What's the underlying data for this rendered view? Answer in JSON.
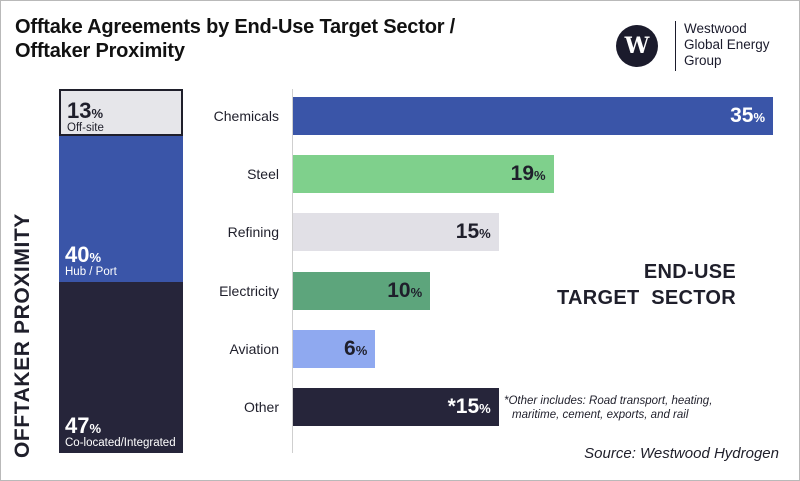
{
  "title": {
    "line1": "Offtake Agreements by End-Use Target Sector /",
    "line2": "Offtaker Proximity"
  },
  "logo": {
    "mark": "W",
    "name_line1": "Westwood",
    "name_line2": "Global Energy",
    "name_line3": "Group"
  },
  "colors": {
    "chemicals": "#3a55a8",
    "steel": "#7fd08c",
    "refining": "#e1e0e6",
    "electricity": "#5da57c",
    "aviation": "#8fa9f0",
    "other": "#26253a",
    "offsite": "#e6e6ea",
    "hub_port": "#3a55a8",
    "colocated": "#26253a"
  },
  "chart_data": [
    {
      "type": "bar",
      "orientation": "horizontal",
      "title": "END-USE TARGET SECTOR",
      "title_line1": "END-USE",
      "title_line2": "TARGET  SECTOR",
      "unit": "%",
      "categories": [
        "Chemicals",
        "Steel",
        "Refining",
        "Electricity",
        "Aviation",
        "Other"
      ],
      "values": [
        35,
        19,
        15,
        10,
        6,
        15
      ],
      "value_labels": [
        "35",
        "19",
        "15",
        "10",
        "6",
        "*15"
      ],
      "xlim": [
        0,
        35
      ]
    },
    {
      "type": "bar",
      "orientation": "stacked-vertical",
      "title": "OFFTAKER PROXIMITY",
      "unit": "%",
      "categories": [
        "Off-site",
        "Hub / Port",
        "Co-located/Integrated"
      ],
      "values": [
        13,
        40,
        47
      ]
    }
  ],
  "note": {
    "line1": "*Other includes: Road transport, heating,",
    "line2": "maritime, cement, exports, and rail"
  },
  "source": "Source: Westwood Hydrogen"
}
